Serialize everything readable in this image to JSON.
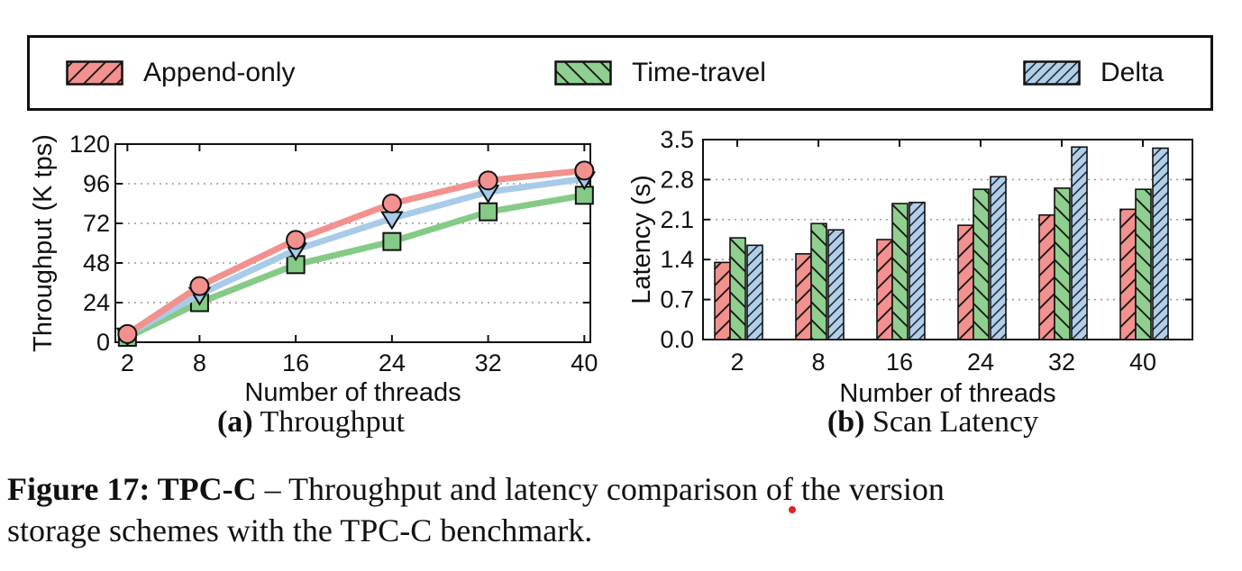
{
  "legend": {
    "items": [
      {
        "label": "Append-only",
        "color": "#F2918E",
        "hatch": "fwd"
      },
      {
        "label": "Time-travel",
        "color": "#8FCF8F",
        "hatch": "back"
      },
      {
        "label": "Delta",
        "color": "#AFCFEA",
        "hatch": "fwd-dense"
      }
    ]
  },
  "chart_data": [
    {
      "id": "throughput",
      "type": "line",
      "title": "(a) Throughput",
      "xlabel": "Number of threads",
      "ylabel": "Throughput (K tps)",
      "x": [
        2,
        8,
        16,
        24,
        32,
        40
      ],
      "x_tick_labels": [
        "2",
        "8",
        "16",
        "24",
        "32",
        "40"
      ],
      "xlim": [
        1,
        40.5
      ],
      "yticks": [
        0,
        24,
        48,
        72,
        96,
        120
      ],
      "ytick_labels": [
        "0",
        "24",
        "48",
        "72",
        "96",
        "120"
      ],
      "ylim": [
        0,
        120
      ],
      "grid": "horizontal-dotted",
      "legend_position": "top-outside",
      "series": [
        {
          "name": "Append-only",
          "color": "#F2918E",
          "marker": "circle",
          "values": [
            5,
            34,
            62,
            84,
            98,
            104
          ]
        },
        {
          "name": "Time-travel",
          "color": "#85CB87",
          "marker": "square",
          "values": [
            3,
            24,
            47,
            61,
            79,
            89
          ]
        },
        {
          "name": "Delta",
          "color": "#A8CBE9",
          "marker": "triangle-down",
          "values": [
            4.5,
            29,
            56,
            75,
            91,
            99
          ]
        }
      ],
      "draw_order": [
        1,
        2,
        0
      ]
    },
    {
      "id": "scan-latency",
      "type": "bar",
      "title": "(b) Scan Latency",
      "xlabel": "Number of threads",
      "ylabel": "Latency (s)",
      "categories": [
        "2",
        "8",
        "16",
        "24",
        "32",
        "40"
      ],
      "yticks": [
        0,
        0.7,
        1.4,
        2.1,
        2.8,
        3.5
      ],
      "ytick_labels": [
        "0.0",
        "0.7",
        "1.4",
        "2.1",
        "2.8",
        "3.5"
      ],
      "ylim": [
        0,
        3.5
      ],
      "grid": "horizontal-dotted",
      "legend_position": "top-outside",
      "series": [
        {
          "name": "Append-only",
          "color": "#F2918E",
          "hatch": "fwd",
          "values": [
            1.35,
            1.5,
            1.75,
            2.0,
            2.18,
            2.28
          ]
        },
        {
          "name": "Time-travel",
          "color": "#8FCF8F",
          "hatch": "back",
          "values": [
            1.78,
            2.03,
            2.38,
            2.63,
            2.65,
            2.63
          ]
        },
        {
          "name": "Delta",
          "color": "#AFCFEA",
          "hatch": "fwd-dense",
          "values": [
            1.65,
            1.92,
            2.4,
            2.85,
            3.37,
            3.35
          ]
        }
      ]
    }
  ],
  "captions": {
    "a_label": "(a)",
    "a_text": " Throughput",
    "b_label": "(b)",
    "b_text": " Scan Latency",
    "figure_bold": "Figure 17: TPC-C",
    "figure_sep": " – ",
    "figure_line1": "Throughput and latency comparison of the version",
    "figure_line2": "storage schemes with the TPC-C benchmark."
  },
  "colors": {
    "append_only": "#F2918E",
    "time_travel": "#8FCF8F",
    "delta": "#AFCFEA",
    "grid": "#999999",
    "axis": "#111111",
    "annotation_dot": "#E32222"
  }
}
